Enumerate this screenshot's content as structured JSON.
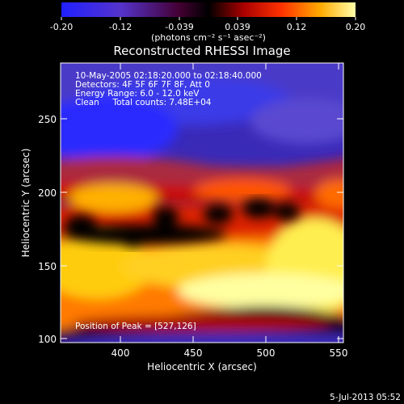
{
  "colorbar": {
    "ticks": [
      "-0.20",
      "-0.12",
      "-0.039",
      "0.039",
      "0.12",
      "0.20"
    ],
    "units": "(photons cm⁻² s⁻¹ asec⁻²)"
  },
  "title": "Reconstructed RHESSI Image",
  "info": {
    "line1": "10-May-2005 02:18:20.000 to 02:18:40.000",
    "line2": "Detectors: 4F 5F 6F 7F 8F, Att 0",
    "line3": "Energy Range: 6.0 - 12.0 keV",
    "line4": "Clean     Total counts: 7.48E+04",
    "peak": "Position of Peak = [527,126]"
  },
  "axes": {
    "xlabel": "Heliocentric X (arcsec)",
    "ylabel": "Heliocentric Y (arcsec)",
    "xticks": [
      "400",
      "450",
      "500",
      "550"
    ],
    "yticks": [
      "100",
      "150",
      "200",
      "250"
    ]
  },
  "footer": {
    "date": "5-Jul-2013 05:52"
  },
  "colors": {
    "background": "#000000",
    "low": "#2020ff",
    "high": "#ffff80"
  }
}
